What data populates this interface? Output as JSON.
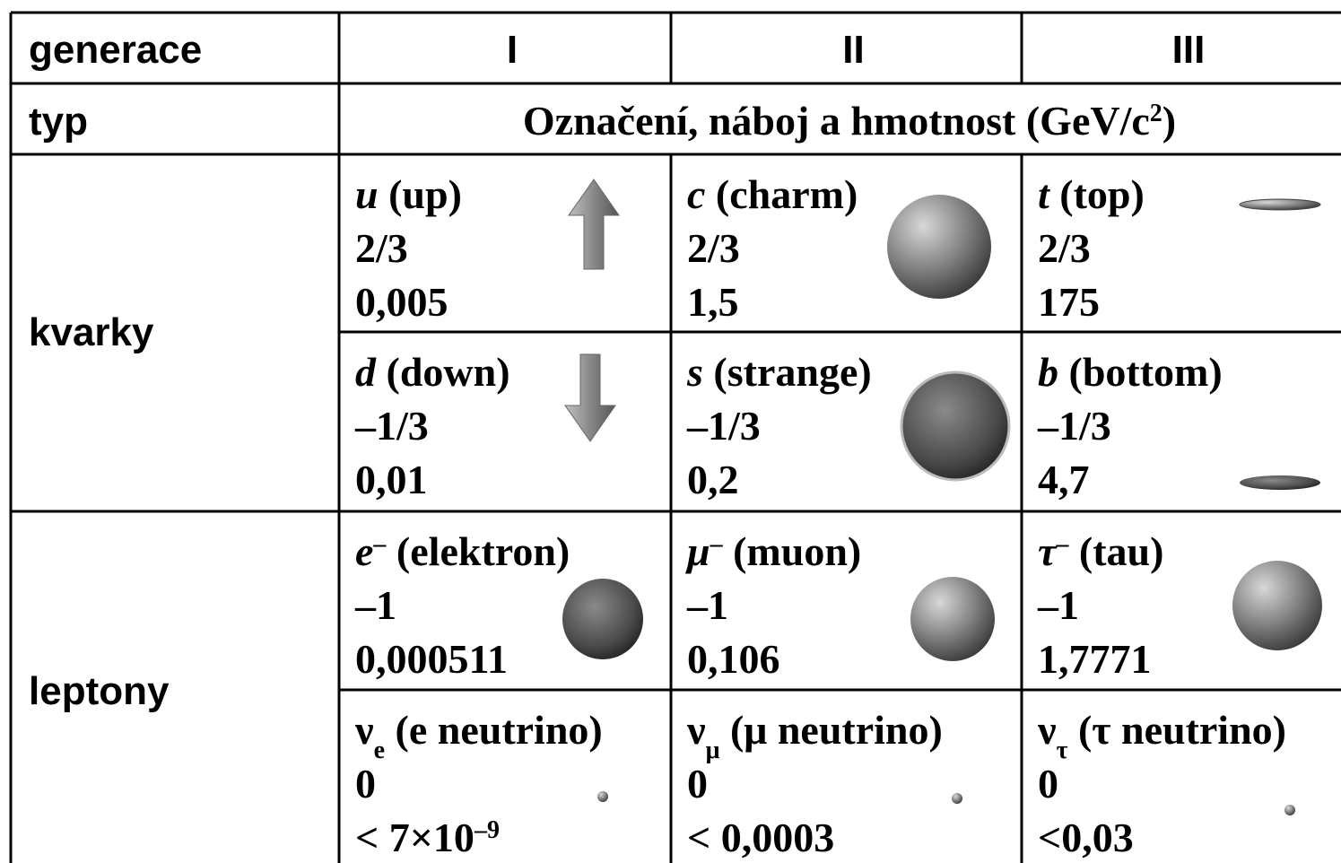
{
  "header": {
    "label": "generace",
    "columns": [
      "I",
      "II",
      "III"
    ]
  },
  "type_row": {
    "label": "typ",
    "text": "Označení, náboj a hmotnost (GeV/c",
    "sup": "2",
    "tail": ")"
  },
  "groups": [
    {
      "label": "kvarky",
      "rows": [
        [
          {
            "symbol": "u",
            "name": "(up)",
            "charge": "2/3",
            "mass": "0,005"
          },
          {
            "symbol": "c",
            "name": "(charm)",
            "charge": "2/3",
            "mass": "1,5"
          },
          {
            "symbol": "t",
            "name": "(top)",
            "charge": "2/3",
            "mass": "175"
          }
        ],
        [
          {
            "symbol": "d",
            "name": "(down)",
            "charge": "–1/3",
            "mass": "0,01"
          },
          {
            "symbol": "s",
            "name": "(strange)",
            "charge": "–1/3",
            "mass": "0,2"
          },
          {
            "symbol": "b",
            "name": "(bottom)",
            "charge": "–1/3",
            "mass": "4,7"
          }
        ]
      ]
    },
    {
      "label": "leptony",
      "rows": [
        [
          {
            "symbol": "e",
            "symbol_sup": "–",
            "name": "(elektron)",
            "charge": "–1",
            "mass": "0,000511"
          },
          {
            "symbol": "μ",
            "symbol_sup": "–",
            "name": "(muon)",
            "charge": "–1",
            "mass": "0,106"
          },
          {
            "symbol": "τ",
            "symbol_sup": "–",
            "name": "(tau)",
            "charge": "–1",
            "mass": "1,7771"
          }
        ],
        [
          {
            "symbol": "ν",
            "symbol_sub": "e",
            "name": "(e neutrino)",
            "charge": "0",
            "mass": "< 7×10",
            "mass_sup": "–9"
          },
          {
            "symbol": "ν",
            "symbol_sub": "μ",
            "name": "(μ neutrino)",
            "charge": "0",
            "mass": "< 0,0003"
          },
          {
            "symbol": "ν",
            "symbol_sub": "τ",
            "name": "(τ neutrino)",
            "charge": "0",
            "mass": "<0,03"
          }
        ]
      ]
    }
  ]
}
